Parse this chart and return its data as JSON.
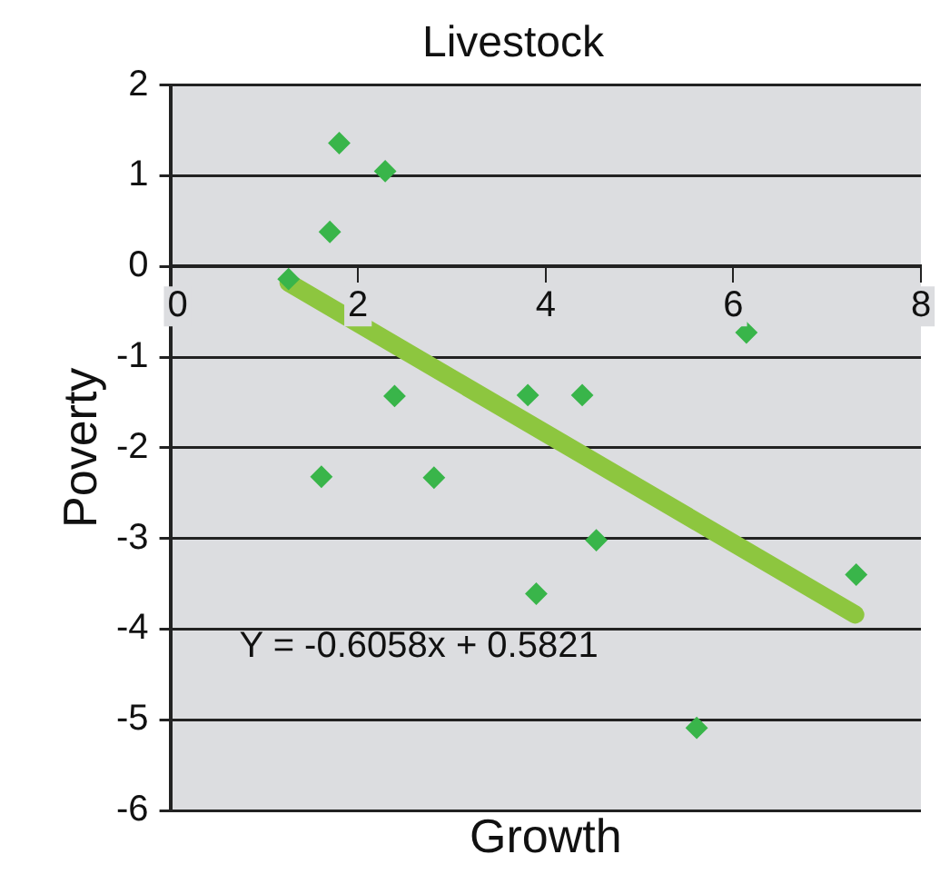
{
  "chart_data": {
    "type": "scatter",
    "title": "Livestock",
    "xlabel": "Growth",
    "ylabel": "Poverty",
    "x": [
      1.26,
      1.7,
      1.8,
      2.29,
      2.39,
      3.81,
      4.39,
      4.54,
      3.9,
      6.14,
      7.31,
      1.61,
      2.81,
      5.61
    ],
    "series": [
      {
        "color": "#39b54a",
        "values": [
          -0.14,
          0.38,
          1.36,
          1.05,
          -1.43,
          -1.42,
          -1.42,
          -3.02,
          -3.61,
          -0.73,
          -3.4,
          -2.32,
          -2.33,
          -5.09
        ]
      },
      {
        "type": "line",
        "color": "#8dc63f",
        "x": [
          1.26,
          7.3
        ],
        "values": [
          -0.18,
          -3.84
        ],
        "marker": "none"
      }
    ],
    "xlim": [
      0,
      8
    ],
    "ylim": [
      -6,
      2
    ],
    "xticks": [
      0,
      2,
      4,
      6,
      8
    ],
    "yticks": [
      -6,
      -5,
      -4,
      -3,
      -2,
      -1,
      0,
      1,
      2
    ],
    "grid": "y",
    "legend": false,
    "marker": "diamond",
    "annotations": [
      "Y = -0.6058x + 0.5821"
    ]
  }
}
